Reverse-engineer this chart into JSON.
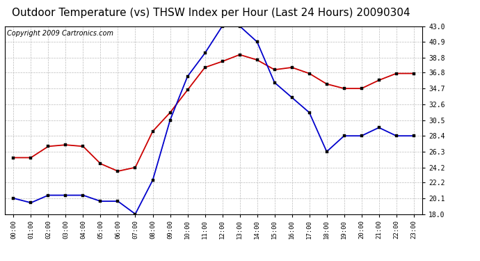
{
  "title": "Outdoor Temperature (vs) THSW Index per Hour (Last 24 Hours) 20090304",
  "copyright": "Copyright 2009 Cartronics.com",
  "hours": [
    "00:00",
    "01:00",
    "02:00",
    "03:00",
    "04:00",
    "05:00",
    "06:00",
    "07:00",
    "08:00",
    "09:00",
    "10:00",
    "11:00",
    "12:00",
    "13:00",
    "14:00",
    "15:00",
    "16:00",
    "17:00",
    "18:00",
    "19:00",
    "20:00",
    "21:00",
    "22:00",
    "23:00"
  ],
  "temp_red": [
    25.5,
    25.5,
    27.0,
    27.2,
    27.0,
    24.7,
    23.7,
    24.2,
    29.0,
    31.5,
    34.5,
    37.5,
    38.3,
    39.2,
    38.5,
    37.2,
    37.5,
    36.7,
    35.3,
    34.7,
    34.7,
    35.8,
    36.7,
    36.7
  ],
  "thsw_blue": [
    20.1,
    19.5,
    20.5,
    20.5,
    20.5,
    19.7,
    19.7,
    18.0,
    22.5,
    30.5,
    36.3,
    39.4,
    43.0,
    43.0,
    40.9,
    35.5,
    33.5,
    31.5,
    26.3,
    28.4,
    28.4,
    29.5,
    28.4,
    28.4
  ],
  "ylim": [
    18.0,
    43.0
  ],
  "yticks": [
    18.0,
    20.1,
    22.2,
    24.2,
    26.3,
    28.4,
    30.5,
    32.6,
    34.7,
    36.8,
    38.8,
    40.9,
    43.0
  ],
  "grid_color": "#bbbbbb",
  "red_color": "#cc0000",
  "blue_color": "#0000cc",
  "bg_color": "#ffffff",
  "plot_bg": "#ffffff",
  "title_fontsize": 11,
  "copyright_fontsize": 7
}
